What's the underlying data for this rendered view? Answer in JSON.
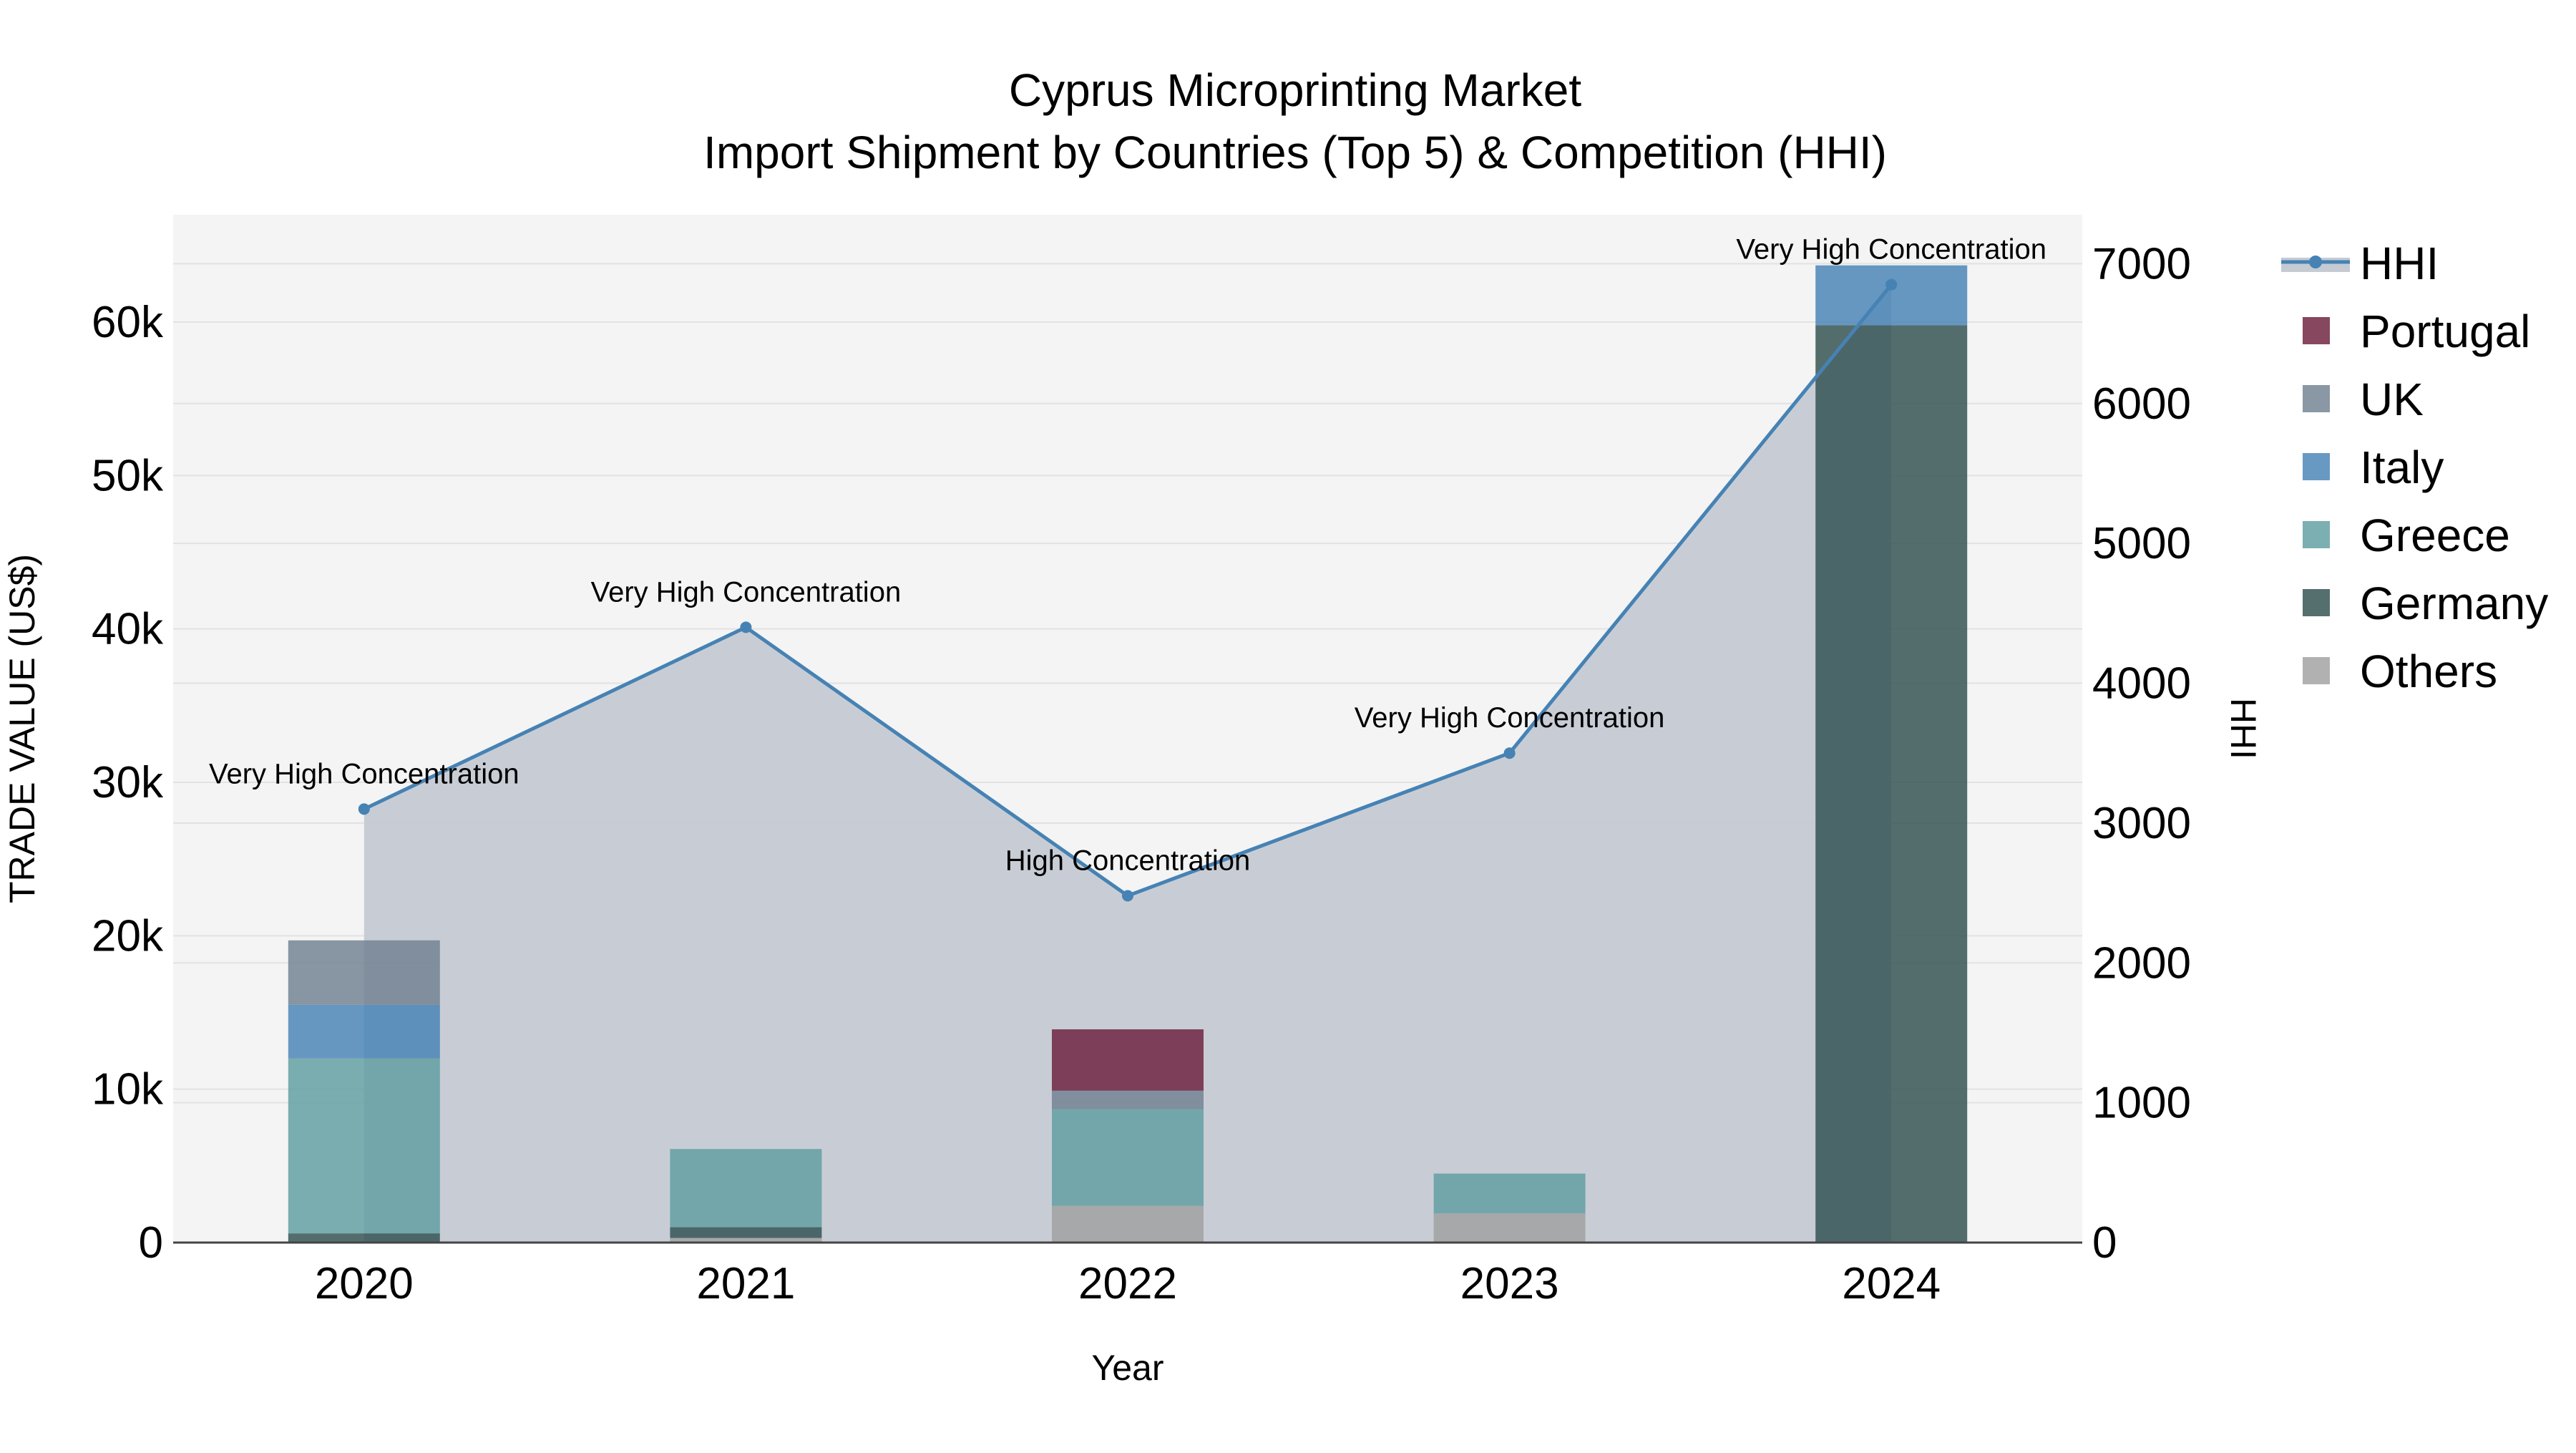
{
  "chart_data": {
    "type": "bar",
    "title": "Cyprus Microprinting Market",
    "subtitle": "Import Shipment by Countries (Top 5) & Competition (HHI)",
    "xlabel": "Year",
    "ylabel": "TRADE VALUE (US$)",
    "y2label": "HHI",
    "categories": [
      "2020",
      "2021",
      "2022",
      "2023",
      "2024"
    ],
    "ylim": [
      0,
      67000
    ],
    "y_ticks": [
      0,
      10000,
      20000,
      30000,
      40000,
      50000,
      60000
    ],
    "y_tick_labels": [
      "0",
      "10k",
      "20k",
      "30k",
      "40k",
      "50k",
      "60k"
    ],
    "y2lim": [
      0,
      7350
    ],
    "y2_ticks": [
      0,
      1000,
      2000,
      3000,
      4000,
      5000,
      6000,
      7000
    ],
    "y2_tick_labels": [
      "0",
      "1000",
      "2000",
      "3000",
      "4000",
      "5000",
      "6000",
      "7000"
    ],
    "legend_position": "right",
    "grid": true,
    "series": [
      {
        "name": "Others",
        "color": "#a0a0a0",
        "values": [
          0,
          300,
          2400,
          1900,
          0
        ]
      },
      {
        "name": "Germany",
        "color": "#2f4f4f",
        "values": [
          600,
          700,
          0,
          0,
          59800
        ]
      },
      {
        "name": "Greece",
        "color": "#5f9ea0",
        "values": [
          11400,
          5100,
          6300,
          2600,
          0
        ]
      },
      {
        "name": "Italy",
        "color": "#4682b4",
        "values": [
          3500,
          0,
          0,
          0,
          3900
        ]
      },
      {
        "name": "UK",
        "color": "#708090",
        "values": [
          4200,
          0,
          1200,
          0,
          0
        ]
      },
      {
        "name": "Portugal",
        "color": "#6b1e3c",
        "values": [
          0,
          0,
          4000,
          0,
          0
        ]
      }
    ],
    "hhi": {
      "name": "HHI",
      "color": "#4682b4",
      "fill_color": "#c5cad3",
      "values": [
        3100,
        4400,
        2480,
        3500,
        6850
      ],
      "annotations": [
        "Very High Concentration",
        "Very High Concentration",
        "High Concentration",
        "Very High Concentration",
        "Very High Concentration"
      ]
    },
    "legend": [
      "HHI",
      "Portugal",
      "UK",
      "Italy",
      "Greece",
      "Germany",
      "Others"
    ]
  }
}
